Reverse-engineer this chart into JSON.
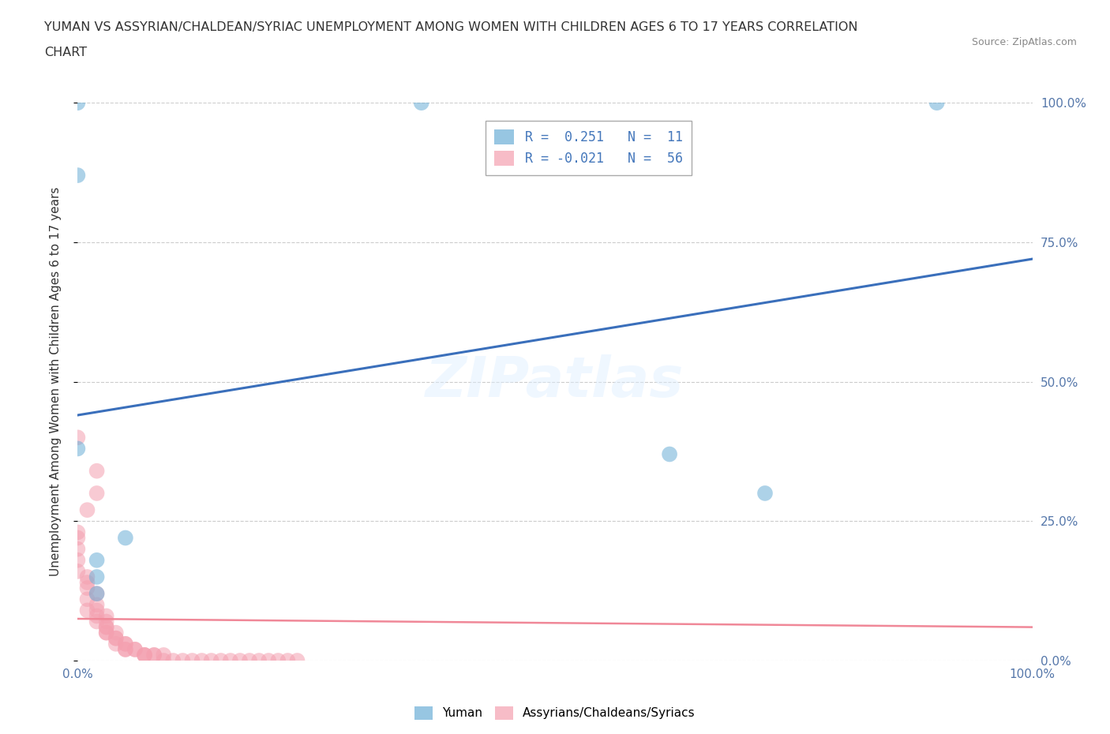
{
  "title_line1": "YUMAN VS ASSYRIAN/CHALDEAN/SYRIAC UNEMPLOYMENT AMONG WOMEN WITH CHILDREN AGES 6 TO 17 YEARS CORRELATION",
  "title_line2": "CHART",
  "source": "Source: ZipAtlas.com",
  "ylabel": "Unemployment Among Women with Children Ages 6 to 17 years",
  "xlim": [
    0.0,
    1.0
  ],
  "ylim": [
    0.0,
    1.0
  ],
  "xtick_labels": [
    "0.0%",
    "100.0%"
  ],
  "ytick_labels": [
    "0.0%",
    "25.0%",
    "50.0%",
    "75.0%",
    "100.0%"
  ],
  "ytick_positions": [
    0.0,
    0.25,
    0.5,
    0.75,
    1.0
  ],
  "xtick_positions": [
    0.0,
    1.0
  ],
  "grid_color": "#cccccc",
  "background_color": "#ffffff",
  "legend_entries": [
    {
      "label": "R =  0.251   N =  11",
      "color": "#aec6e8"
    },
    {
      "label": "R = -0.021   N =  56",
      "color": "#f4a7b9"
    }
  ],
  "yuman_color": "#6baed6",
  "assyrian_color": "#f4a0b0",
  "yuman_trend_color": "#3a6fbb",
  "assyrian_trend_color": "#f08898",
  "yuman_scatter": [
    [
      0.0,
      1.0
    ],
    [
      0.36,
      1.0
    ],
    [
      0.9,
      1.0
    ],
    [
      0.0,
      0.87
    ],
    [
      0.0,
      0.38
    ],
    [
      0.05,
      0.22
    ],
    [
      0.02,
      0.18
    ],
    [
      0.02,
      0.15
    ],
    [
      0.02,
      0.12
    ],
    [
      0.62,
      0.37
    ],
    [
      0.72,
      0.3
    ]
  ],
  "assyrian_scatter": [
    [
      0.0,
      0.4
    ],
    [
      0.02,
      0.34
    ],
    [
      0.02,
      0.3
    ],
    [
      0.01,
      0.27
    ],
    [
      0.0,
      0.23
    ],
    [
      0.0,
      0.22
    ],
    [
      0.0,
      0.2
    ],
    [
      0.0,
      0.18
    ],
    [
      0.0,
      0.16
    ],
    [
      0.01,
      0.15
    ],
    [
      0.01,
      0.14
    ],
    [
      0.01,
      0.13
    ],
    [
      0.02,
      0.12
    ],
    [
      0.01,
      0.11
    ],
    [
      0.02,
      0.1
    ],
    [
      0.01,
      0.09
    ],
    [
      0.02,
      0.09
    ],
    [
      0.02,
      0.08
    ],
    [
      0.03,
      0.08
    ],
    [
      0.02,
      0.07
    ],
    [
      0.03,
      0.07
    ],
    [
      0.03,
      0.06
    ],
    [
      0.03,
      0.06
    ],
    [
      0.03,
      0.05
    ],
    [
      0.03,
      0.05
    ],
    [
      0.04,
      0.05
    ],
    [
      0.04,
      0.04
    ],
    [
      0.04,
      0.04
    ],
    [
      0.04,
      0.03
    ],
    [
      0.05,
      0.03
    ],
    [
      0.05,
      0.03
    ],
    [
      0.05,
      0.02
    ],
    [
      0.05,
      0.02
    ],
    [
      0.06,
      0.02
    ],
    [
      0.06,
      0.02
    ],
    [
      0.07,
      0.01
    ],
    [
      0.07,
      0.01
    ],
    [
      0.07,
      0.01
    ],
    [
      0.08,
      0.01
    ],
    [
      0.08,
      0.01
    ],
    [
      0.09,
      0.01
    ],
    [
      0.09,
      0.0
    ],
    [
      0.1,
      0.0
    ],
    [
      0.11,
      0.0
    ],
    [
      0.12,
      0.0
    ],
    [
      0.13,
      0.0
    ],
    [
      0.14,
      0.0
    ],
    [
      0.15,
      0.0
    ],
    [
      0.16,
      0.0
    ],
    [
      0.17,
      0.0
    ],
    [
      0.18,
      0.0
    ],
    [
      0.19,
      0.0
    ],
    [
      0.2,
      0.0
    ],
    [
      0.21,
      0.0
    ],
    [
      0.22,
      0.0
    ],
    [
      0.23,
      0.0
    ]
  ],
  "yuman_trend_x": [
    0.0,
    1.0
  ],
  "yuman_trend_y": [
    0.44,
    0.72
  ],
  "assyrian_trend_x": [
    0.0,
    1.0
  ],
  "assyrian_trend_y": [
    0.075,
    0.06
  ]
}
